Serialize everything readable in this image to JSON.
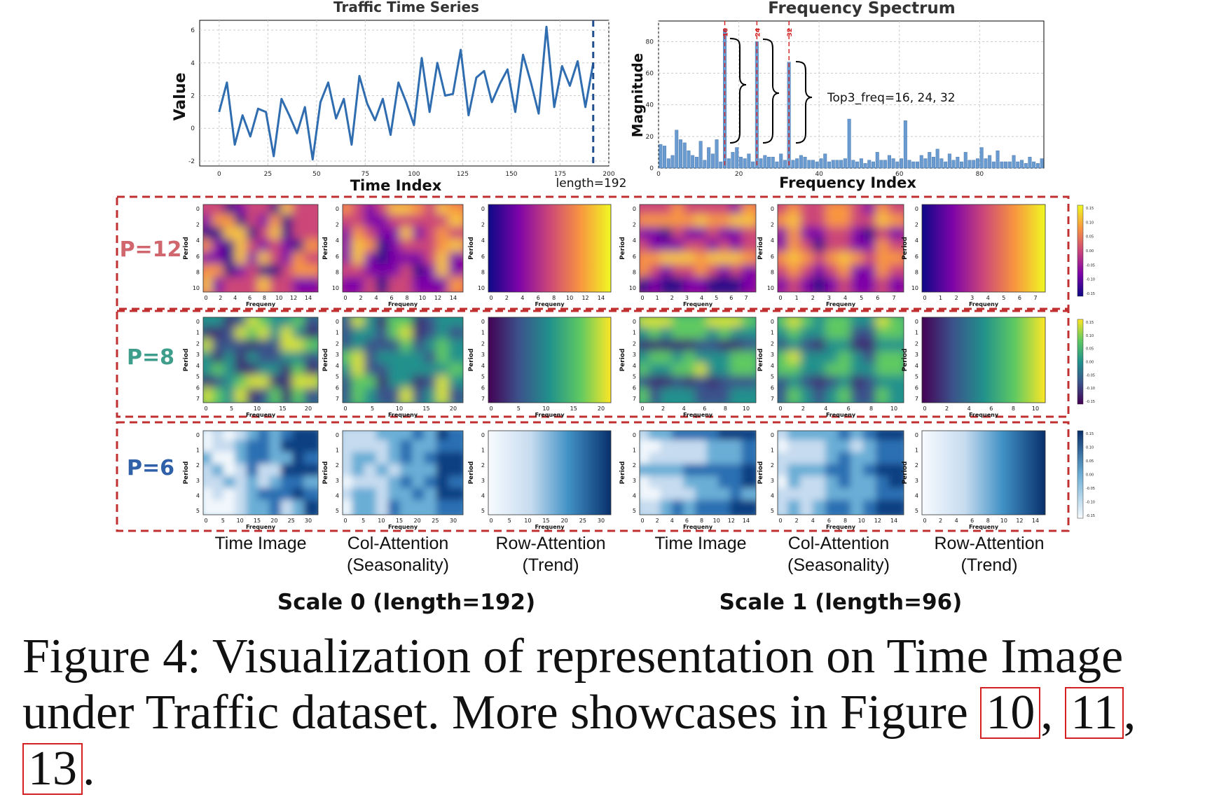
{
  "colors": {
    "line": "#2f6db0",
    "bar": "#6a9bd0",
    "accent_red": "#d42020",
    "dashed_box": "#c03030",
    "p12": "#d0666e",
    "p8": "#3f9d8c",
    "p6": "#2f60a8"
  },
  "chart_data": [
    {
      "type": "line",
      "title": "Traffic Time Series",
      "xlabel": "Time Index",
      "ylabel": "Value",
      "xlim": [
        -10,
        200
      ],
      "ylim": [
        -2.3,
        6.6
      ],
      "xticks": [
        0,
        25,
        50,
        75,
        100,
        125,
        150,
        175,
        200
      ],
      "yticks": [
        -2,
        0,
        2,
        4,
        6
      ],
      "grid": true,
      "cutoff_x": 192,
      "cutoff_label": "length=192",
      "x": [
        0,
        4,
        8,
        12,
        16,
        20,
        24,
        28,
        32,
        36,
        40,
        44,
        48,
        52,
        56,
        60,
        64,
        68,
        72,
        76,
        80,
        84,
        88,
        92,
        96,
        100,
        104,
        108,
        112,
        116,
        120,
        124,
        128,
        132,
        136,
        140,
        144,
        148,
        152,
        156,
        160,
        164,
        168,
        172,
        176,
        180,
        184,
        188,
        192
      ],
      "y": [
        1.0,
        2.8,
        -1.0,
        0.8,
        -0.5,
        1.2,
        1.0,
        -1.7,
        1.8,
        0.8,
        -0.3,
        1.3,
        -1.9,
        1.6,
        2.8,
        0.6,
        1.8,
        -1.0,
        3.2,
        1.5,
        0.5,
        1.8,
        -0.4,
        2.8,
        1.6,
        0.2,
        4.3,
        1.0,
        4.0,
        2.0,
        2.1,
        4.8,
        0.8,
        3.1,
        3.5,
        1.6,
        2.7,
        3.6,
        1.0,
        4.5,
        2.8,
        0.9,
        6.2,
        1.3,
        3.8,
        2.6,
        4.1,
        1.3,
        4.0
      ]
    },
    {
      "type": "bar",
      "title": "Frequency Spectrum",
      "xlabel": "Frequency Index",
      "ylabel": "Magnitude",
      "xlim": [
        0,
        96
      ],
      "ylim": [
        0,
        93
      ],
      "xticks": [
        0,
        20,
        40,
        60,
        80
      ],
      "yticks": [
        0,
        20,
        40,
        60,
        80
      ],
      "grid": true,
      "values": [
        15,
        14,
        6,
        8,
        24,
        18,
        16,
        11,
        8,
        7,
        17,
        5,
        13,
        9,
        18,
        4,
        88,
        6,
        10,
        13,
        7,
        6,
        9,
        4,
        80,
        6,
        8,
        7,
        7,
        4,
        9,
        5,
        67,
        5,
        6,
        8,
        7,
        5,
        5,
        4,
        6,
        9,
        4,
        5,
        5,
        5,
        6,
        31,
        5,
        4,
        6,
        3,
        5,
        4,
        10,
        5,
        5,
        8,
        6,
        4,
        6,
        30,
        5,
        4,
        4,
        8,
        6,
        10,
        7,
        12,
        6,
        4,
        9,
        5,
        7,
        4,
        10,
        5,
        5,
        6,
        13,
        6,
        8,
        4,
        11,
        4,
        4,
        4,
        8,
        4,
        5,
        3,
        7,
        4,
        3,
        6
      ],
      "highlight_indices": [
        16,
        24,
        32
      ],
      "highlight_labels": [
        "16",
        "24",
        "32"
      ],
      "annotation": "Top3_freq=16, 24, 32"
    }
  ],
  "panel_rows": [
    {
      "label": "P=12",
      "cmap": "plasma",
      "rows": 11,
      "yticks": [
        "0",
        "2",
        "4",
        "6",
        "8",
        "10"
      ],
      "colorbar": [
        "0.15",
        "0.10",
        "0.05",
        "0.00",
        "-0.05",
        "-0.10",
        "-0.15"
      ],
      "xticks_s0": [
        "0",
        "2",
        "4",
        "6",
        "8",
        "10",
        "12",
        "14"
      ],
      "xticks_s1": [
        "0",
        "1",
        "2",
        "3",
        "4",
        "5",
        "6",
        "7"
      ]
    },
    {
      "label": "P=8",
      "cmap": "viridis",
      "rows": 8,
      "yticks": [
        "0",
        "1",
        "2",
        "3",
        "4",
        "5",
        "6",
        "7"
      ],
      "colorbar": [
        "0.15",
        "0.10",
        "0.05",
        "0.00",
        "-0.05",
        "-0.10",
        "-0.15"
      ],
      "xticks_s0": [
        "0",
        "5",
        "10",
        "15",
        "20"
      ],
      "xticks_s1": [
        "0",
        "2",
        "4",
        "6",
        "8",
        "10"
      ]
    },
    {
      "label": "P=6",
      "cmap": "blues",
      "rows": 6,
      "yticks": [
        "0",
        "1",
        "2",
        "3",
        "4",
        "5"
      ],
      "colorbar": [
        "0.15",
        "0.10",
        "0.05",
        "0.00",
        "-0.05",
        "-0.10",
        "-0.15"
      ],
      "xticks_s0": [
        "0",
        "5",
        "10",
        "15",
        "20",
        "25",
        "30"
      ],
      "xticks_s1": [
        "0",
        "2",
        "4",
        "6",
        "8",
        "10",
        "12",
        "14"
      ]
    }
  ],
  "panel_axis": {
    "ylabel": "Period",
    "xlabel": "Frequeny"
  },
  "columns": [
    {
      "line1": "Time Image",
      "line2": ""
    },
    {
      "line1": "Col-Attention",
      "line2": "(Seasonality)"
    },
    {
      "line1": "Row-Attention",
      "line2": "(Trend)"
    },
    {
      "line1": "Time Image",
      "line2": ""
    },
    {
      "line1": "Col-Attention",
      "line2": "(Seasonality)"
    },
    {
      "line1": "Row-Attention",
      "line2": "(Trend)"
    }
  ],
  "scales": [
    "Scale 0 (length=192)",
    "Scale 1 (length=96)"
  ],
  "caption": {
    "part1": "Figure 4:  Visualization of representation on Time Image under Traffic dataset. More showcases in Figure ",
    "ref1": "10",
    "sep1": ",  ",
    "ref2": "11",
    "sep2": ",  ",
    "ref3": "13",
    "end": "."
  }
}
